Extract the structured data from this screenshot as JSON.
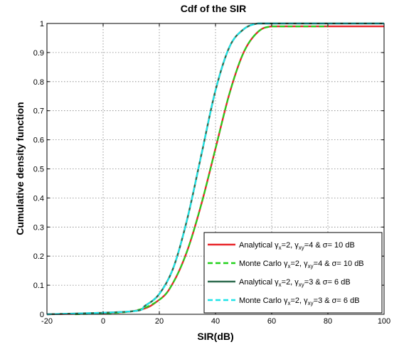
{
  "chart_data": {
    "type": "line",
    "title": "Cdf of the SIR",
    "xlabel": "SIR(dB)",
    "ylabel": "Cumulative density function",
    "xlim": [
      -20,
      100
    ],
    "ylim": [
      0,
      1
    ],
    "xticks": [
      "-20",
      "0",
      "20",
      "40",
      "60",
      "80",
      "100"
    ],
    "yticks": [
      "0",
      "0.1",
      "0.2",
      "0.3",
      "0.4",
      "0.5",
      "0.6",
      "0.7",
      "0.8",
      "0.9",
      "1"
    ],
    "grid": true,
    "legend_position": "bottom-right",
    "series": [
      {
        "name_parts": [
          "Analytical γ",
          "x",
          "=2, γ",
          "xy",
          "=4 & σ= 10 dB"
        ],
        "color": "#e8262a",
        "style": "solid",
        "x": [
          -20,
          10,
          20,
          25,
          30,
          35,
          40,
          45,
          50,
          55,
          60,
          70,
          80,
          90,
          100
        ],
        "y": [
          0,
          0.01,
          0.05,
          0.11,
          0.22,
          0.38,
          0.57,
          0.76,
          0.9,
          0.97,
          0.99,
          0.99,
          0.99,
          0.99,
          0.99
        ]
      },
      {
        "name_parts": [
          "Monte Carlo γ",
          "x",
          "=2, γ",
          "xy",
          "=4 & σ= 10 dB"
        ],
        "color": "#22d11b",
        "style": "dashed",
        "x": [
          -10,
          10,
          20,
          25,
          30,
          35,
          40,
          45,
          50,
          55,
          60,
          70,
          80
        ],
        "y": [
          0,
          0.01,
          0.05,
          0.11,
          0.22,
          0.38,
          0.57,
          0.76,
          0.9,
          0.97,
          0.99,
          0.99,
          0.99
        ]
      },
      {
        "name_parts": [
          "Analytical γ",
          "x",
          "=2, γ",
          "xy",
          "=3 & σ= 6 dB"
        ],
        "color": "#2e6b4f",
        "style": "solid",
        "x": [
          -20,
          10,
          15,
          20,
          25,
          30,
          35,
          40,
          45,
          50,
          55,
          60,
          70,
          80,
          100
        ],
        "y": [
          0,
          0.01,
          0.03,
          0.07,
          0.16,
          0.33,
          0.55,
          0.77,
          0.92,
          0.98,
          1,
          1,
          1,
          1,
          1
        ]
      },
      {
        "name_parts": [
          "Monte Carlo γ",
          "x",
          "=2, γ",
          "xy",
          "=3 & σ= 6 dB"
        ],
        "color": "#1ee3e8",
        "style": "dashed",
        "x": [
          -20,
          10,
          15,
          20,
          25,
          30,
          35,
          40,
          45,
          50,
          55,
          60,
          70,
          80,
          100
        ],
        "y": [
          0,
          0.01,
          0.03,
          0.07,
          0.16,
          0.33,
          0.55,
          0.77,
          0.92,
          0.98,
          1,
          1,
          1,
          1,
          1
        ]
      }
    ]
  }
}
